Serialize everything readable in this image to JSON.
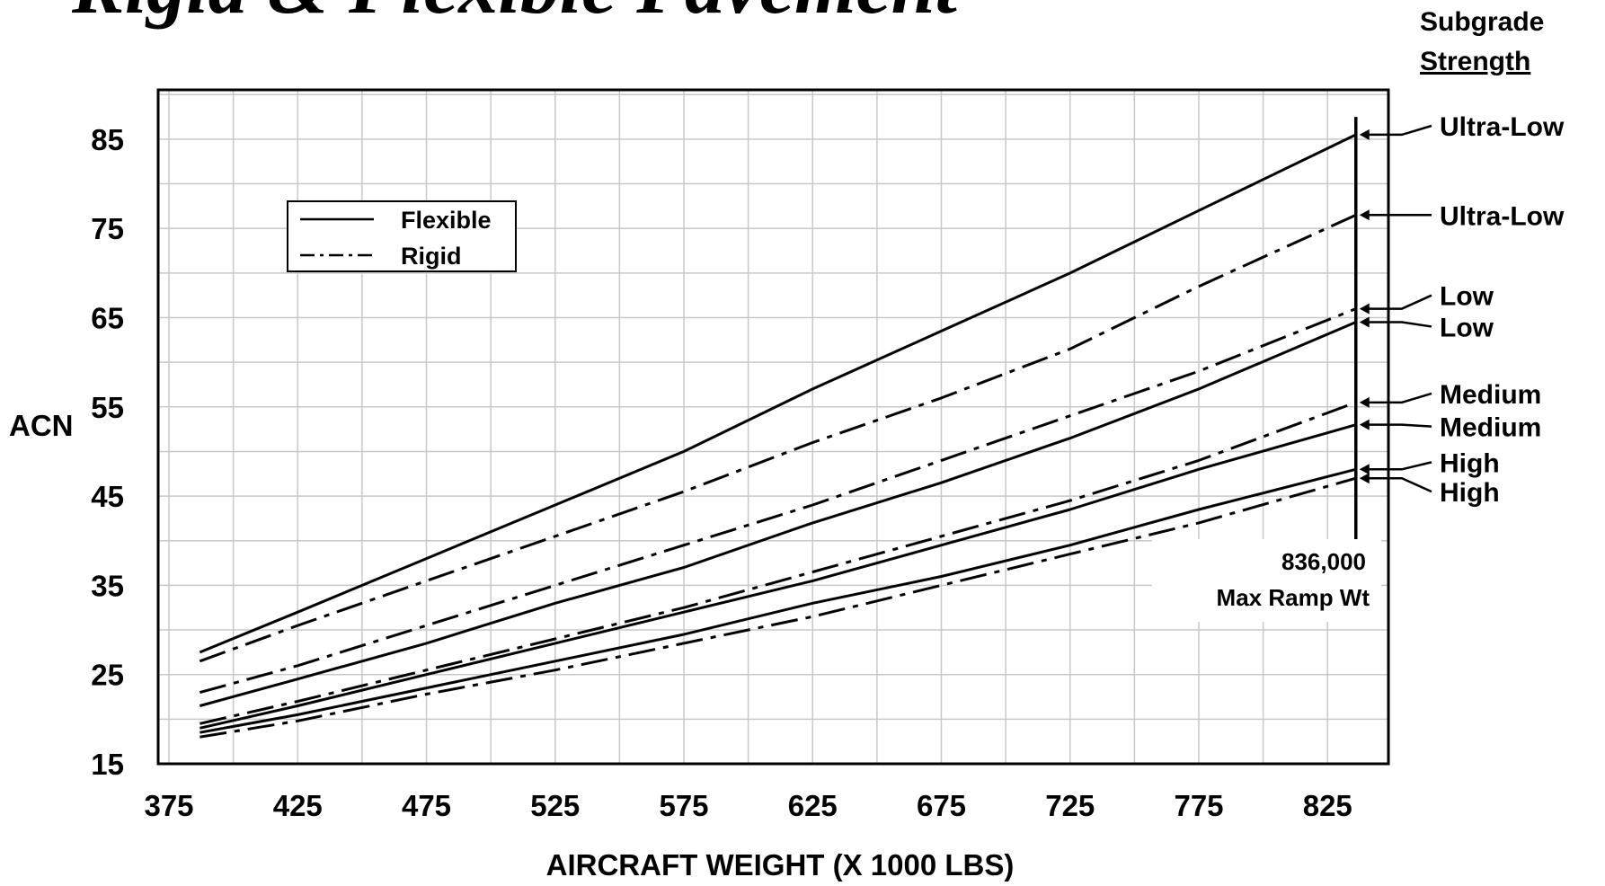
{
  "chart_data": {
    "type": "line",
    "title": "Rigid & Flexible Pavement",
    "xlabel": "AIRCRAFT WEIGHT (X 1000 LBS)",
    "ylabel": "ACN",
    "xlim": [
      375,
      850
    ],
    "ylim": [
      15,
      90
    ],
    "x_ticks": [
      375,
      425,
      475,
      525,
      575,
      625,
      675,
      725,
      775,
      825
    ],
    "y_ticks": [
      15,
      25,
      35,
      45,
      55,
      65,
      75,
      85
    ],
    "grid": true,
    "legend": {
      "placement": "upper-left",
      "entries": [
        {
          "label": "Flexible",
          "style": "solid"
        },
        {
          "label": "Rigid",
          "style": "dash-dot"
        }
      ]
    },
    "right_header": [
      "Subgrade",
      "Strength"
    ],
    "max_weight": {
      "x": 836,
      "label_lines": [
        "836,000",
        "Max Ramp Wt"
      ]
    },
    "series": [
      {
        "name": "Ultra-Low",
        "style": "solid",
        "label_y": 86.5,
        "x": [
          387,
          425,
          475,
          525,
          575,
          625,
          675,
          725,
          775,
          836
        ],
        "y": [
          27.5,
          32,
          38,
          44,
          50,
          57,
          63.5,
          70,
          77,
          85.5
        ]
      },
      {
        "name": "Ultra-Low",
        "style": "dash-dot",
        "label_y": 76.5,
        "x": [
          387,
          425,
          475,
          525,
          575,
          625,
          675,
          725,
          775,
          836
        ],
        "y": [
          26.5,
          30.5,
          35.5,
          40.5,
          45.5,
          51,
          56,
          61.5,
          68.5,
          76.5
        ]
      },
      {
        "name": "Low",
        "style": "dash-dot",
        "label_y": 67.5,
        "x": [
          387,
          425,
          475,
          525,
          575,
          625,
          675,
          725,
          775,
          836
        ],
        "y": [
          23,
          26,
          30.5,
          35,
          39.5,
          44,
          49,
          54,
          59,
          66
        ]
      },
      {
        "name": "Low",
        "style": "solid",
        "label_y": 64,
        "x": [
          387,
          425,
          475,
          525,
          575,
          625,
          675,
          725,
          775,
          836
        ],
        "y": [
          21.5,
          24.5,
          28.5,
          33,
          37,
          42,
          46.5,
          51.5,
          57,
          64.5
        ]
      },
      {
        "name": "Medium",
        "style": "dash-dot",
        "label_y": 56.5,
        "x": [
          387,
          425,
          475,
          525,
          575,
          625,
          675,
          725,
          775,
          836
        ],
        "y": [
          19.5,
          22,
          25.5,
          29,
          32.5,
          36.5,
          40.5,
          44.5,
          49,
          55.5
        ]
      },
      {
        "name": "Medium",
        "style": "solid",
        "label_y": 52.8,
        "x": [
          387,
          425,
          475,
          525,
          575,
          625,
          675,
          725,
          775,
          836
        ],
        "y": [
          19,
          21.5,
          25,
          28.5,
          32,
          35.5,
          39.5,
          43.5,
          48,
          53
        ]
      },
      {
        "name": "High",
        "style": "solid",
        "label_y": 48.8,
        "x": [
          387,
          425,
          475,
          525,
          575,
          625,
          675,
          725,
          775,
          836
        ],
        "y": [
          18.5,
          20.5,
          23.5,
          26.5,
          29.5,
          33,
          36,
          39.5,
          43.5,
          48
        ]
      },
      {
        "name": "High",
        "style": "dash-dot",
        "label_y": 45.5,
        "x": [
          387,
          425,
          475,
          525,
          575,
          625,
          675,
          725,
          775,
          836
        ],
        "y": [
          18,
          19.8,
          22.8,
          25.5,
          28.5,
          31.5,
          35,
          38.5,
          42,
          47
        ]
      }
    ]
  }
}
